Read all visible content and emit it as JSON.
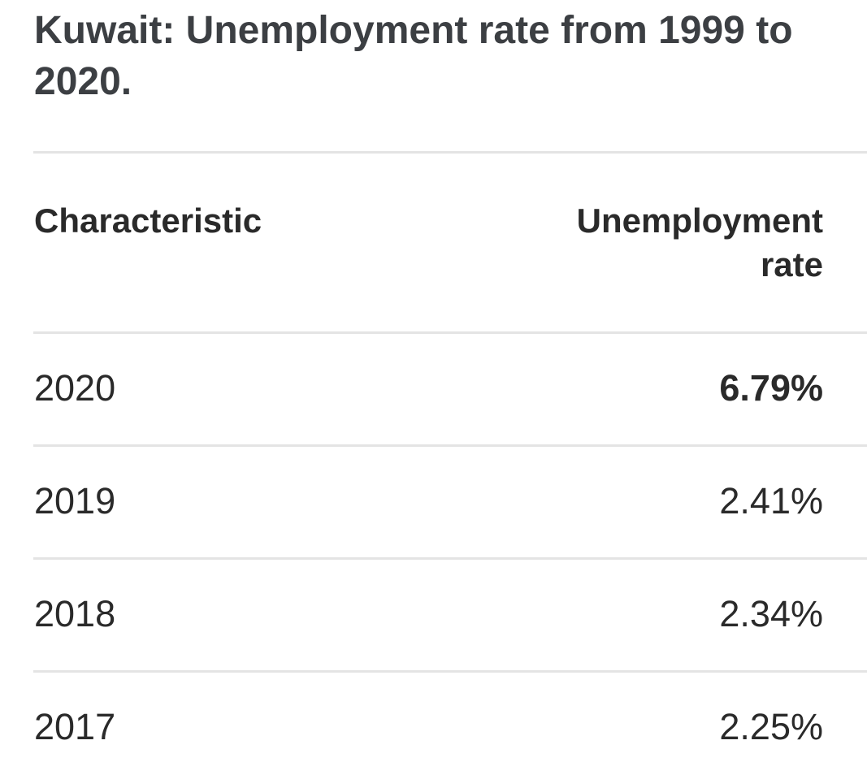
{
  "title": "Kuwait: Unemployment rate from 1999 to 2020.",
  "table": {
    "columns": [
      "Characteristic",
      "Unemployment rate"
    ],
    "rows": [
      {
        "year": "2020",
        "value": "6.79%"
      },
      {
        "year": "2019",
        "value": "2.41%"
      },
      {
        "year": "2018",
        "value": "2.34%"
      },
      {
        "year": "2017",
        "value": "2.25%"
      }
    ]
  }
}
